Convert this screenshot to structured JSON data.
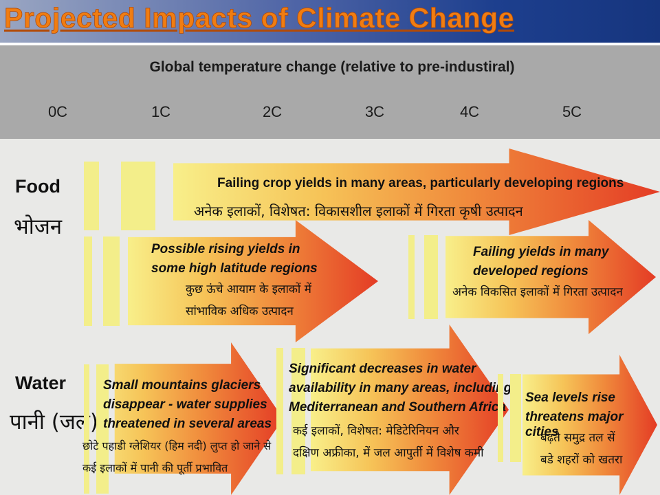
{
  "title": "Projected Impacts of Climate Change",
  "axis_title": "Global temperature change (relative to pre-industiral)",
  "ticks": [
    "0C",
    "1C",
    "2C",
    "3C",
    "4C",
    "5C"
  ],
  "colors": {
    "title": "#f07d12",
    "bar": "#f3ee8a",
    "arrow_start": "#f8ef8a",
    "arrow_end": "#e43c25",
    "band": "#a9a9a9"
  },
  "food": {
    "label": "Food",
    "label_hi": "भोजन",
    "crop_yields": {
      "en": "Failing crop yields in many areas, particularly developing regions",
      "hi": "अनेक इलाकों, विशेषत: विकासशील इलाकों में गिरता कृषी उत्पादन"
    },
    "rising_yields": {
      "en_1": "Possible rising yields in",
      "en_2": "some high latitude regions",
      "hi_1": "कुछ ऊंचे आयाम के इलाकों में",
      "hi_2": "सांभाविक अधिक उत्पादन"
    },
    "developed": {
      "en_1": "Failing yields in many",
      "en_2": "developed regions",
      "hi_1": "अनेक विकसित इलाकों में गिरता उत्पादन"
    }
  },
  "water": {
    "label": "Water",
    "label_hi": "पानी (जल)",
    "glaciers": {
      "en_1": "Small mountains glaciers",
      "en_2": "disappear - water supplies",
      "en_3": "threatened in several areas",
      "hi_1": "छोटे पहाडी ग्लेशियर (हिम नदी) लुप्त हो जाने से",
      "hi_2": "कई इलाकों में पानी की पूर्ती प्रभावित"
    },
    "decreases": {
      "en_1": "Significant decreases in water",
      "en_2": "availability in many areas, including",
      "en_3": "Mediterranean and Southern Africa",
      "hi_1": "कई इलाकों, विशेषत: मेडिटेरिनियन और",
      "hi_2": "दक्षिण अफ्रीका, में जल आपुर्ती में विशेष कमी"
    },
    "sea_levels": {
      "en_1": "Sea levels rise",
      "en_2": "threatens major cities",
      "hi_1": "बढ़ते समुद्र तल सें",
      "hi_2": "बडे शहरों को खतरा"
    }
  }
}
